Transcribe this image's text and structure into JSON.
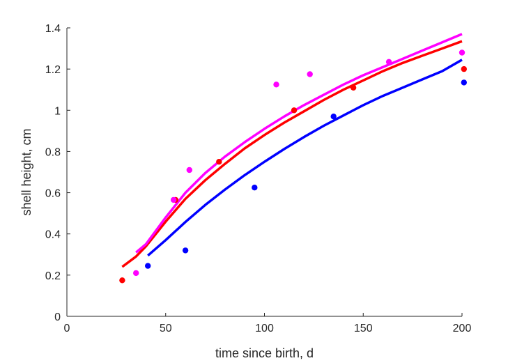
{
  "chart_data": {
    "type": "scatter",
    "title": "",
    "xlabel": "time since birth, d",
    "ylabel": "shell height, cm",
    "xlim": [
      0,
      200
    ],
    "ylim": [
      0,
      1.4
    ],
    "xticks": [
      0,
      50,
      100,
      150,
      200
    ],
    "xtick_labels": [
      "0",
      "50",
      "100",
      "150",
      "200"
    ],
    "yticks": [
      0,
      0.2,
      0.4,
      0.6,
      0.8,
      1,
      1.2,
      1.4
    ],
    "ytick_labels": [
      "0",
      "0.2",
      "0.4",
      "0.6",
      "0.8",
      "1",
      "1.2",
      "1.4"
    ],
    "grid": false,
    "series": [
      {
        "color": "#0000ff",
        "points": [
          [
            41,
            0.245
          ],
          [
            60,
            0.32
          ],
          [
            95,
            0.625
          ],
          [
            135,
            0.97
          ],
          [
            201,
            1.135
          ]
        ],
        "curve": [
          [
            41,
            0.295
          ],
          [
            50,
            0.37
          ],
          [
            60,
            0.458
          ],
          [
            70,
            0.54
          ],
          [
            80,
            0.615
          ],
          [
            90,
            0.685
          ],
          [
            100,
            0.75
          ],
          [
            110,
            0.812
          ],
          [
            120,
            0.87
          ],
          [
            130,
            0.925
          ],
          [
            140,
            0.975
          ],
          [
            150,
            1.025
          ],
          [
            160,
            1.07
          ],
          [
            170,
            1.11
          ],
          [
            180,
            1.15
          ],
          [
            190,
            1.19
          ],
          [
            200,
            1.245
          ]
        ]
      },
      {
        "color": "#ff0000",
        "points": [
          [
            28,
            0.175
          ],
          [
            55,
            0.565
          ],
          [
            77,
            0.75
          ],
          [
            115,
            1.0
          ],
          [
            145,
            1.11
          ],
          [
            201,
            1.2
          ]
        ],
        "curve": [
          [
            28,
            0.24
          ],
          [
            35,
            0.29
          ],
          [
            40,
            0.34
          ],
          [
            50,
            0.46
          ],
          [
            60,
            0.57
          ],
          [
            70,
            0.66
          ],
          [
            80,
            0.74
          ],
          [
            90,
            0.815
          ],
          [
            100,
            0.88
          ],
          [
            110,
            0.94
          ],
          [
            120,
            0.995
          ],
          [
            130,
            1.05
          ],
          [
            140,
            1.1
          ],
          [
            150,
            1.145
          ],
          [
            160,
            1.19
          ],
          [
            170,
            1.23
          ],
          [
            180,
            1.265
          ],
          [
            190,
            1.3
          ],
          [
            200,
            1.335
          ]
        ]
      },
      {
        "color": "#ff00ff",
        "points": [
          [
            35,
            0.21
          ],
          [
            54,
            0.565
          ],
          [
            62,
            0.71
          ],
          [
            106,
            1.125
          ],
          [
            123,
            1.175
          ],
          [
            163,
            1.235
          ],
          [
            200,
            1.28
          ]
        ],
        "curve": [
          [
            35,
            0.31
          ],
          [
            40,
            0.35
          ],
          [
            50,
            0.48
          ],
          [
            60,
            0.6
          ],
          [
            70,
            0.695
          ],
          [
            80,
            0.775
          ],
          [
            90,
            0.845
          ],
          [
            100,
            0.91
          ],
          [
            110,
            0.97
          ],
          [
            120,
            1.025
          ],
          [
            130,
            1.075
          ],
          [
            140,
            1.125
          ],
          [
            150,
            1.17
          ],
          [
            160,
            1.21
          ],
          [
            170,
            1.25
          ],
          [
            180,
            1.29
          ],
          [
            190,
            1.33
          ],
          [
            200,
            1.37
          ]
        ]
      }
    ]
  }
}
